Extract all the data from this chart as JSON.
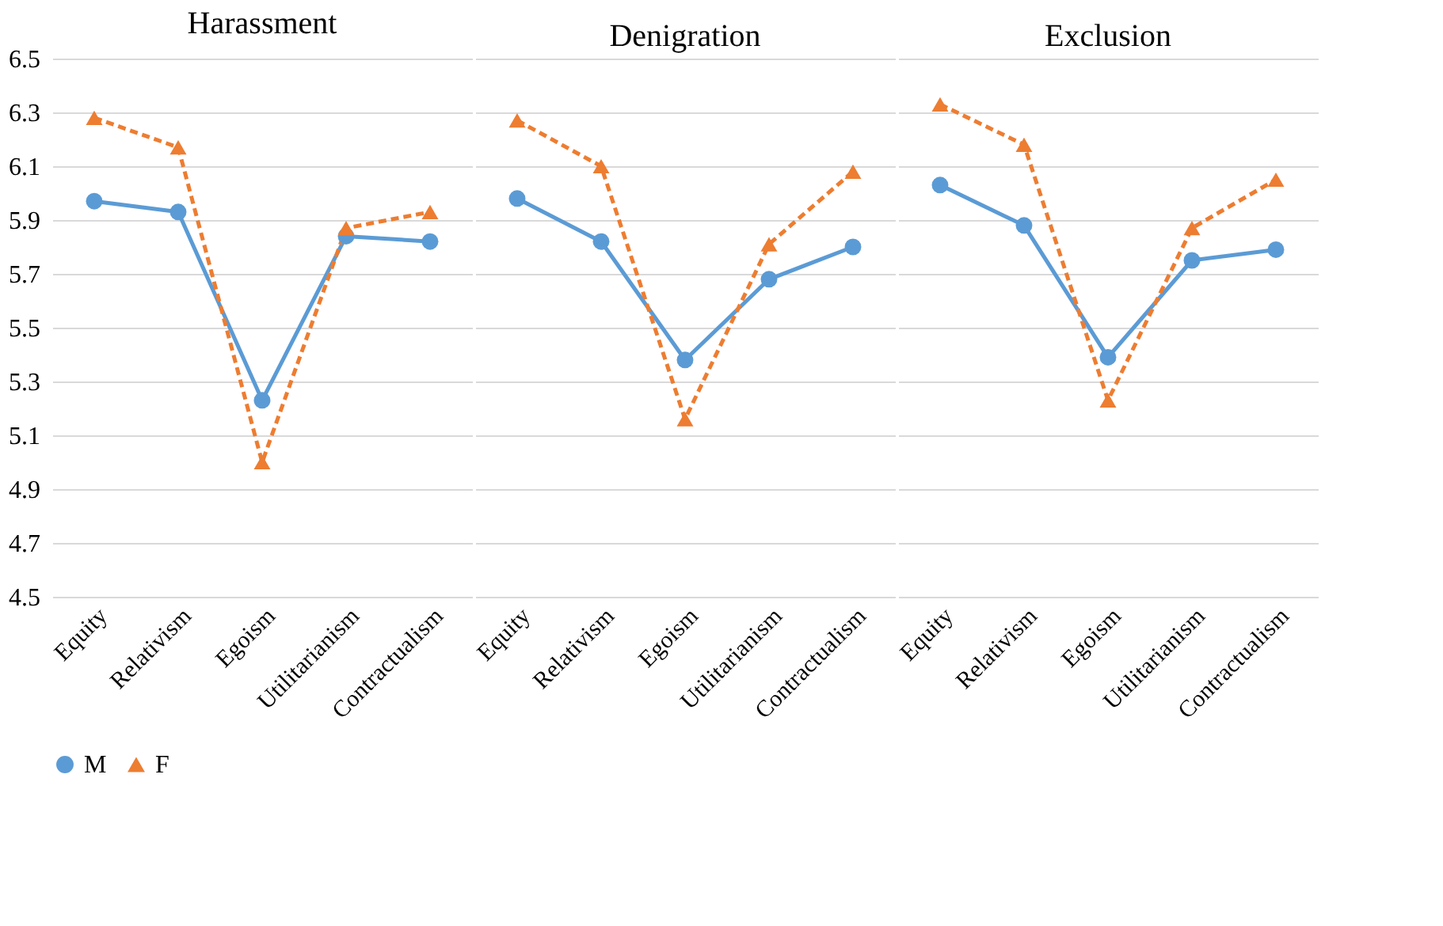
{
  "chart_data": [
    {
      "type": "line",
      "title": "Harassment",
      "categories": [
        "Equity",
        "Relativism",
        "Egoism",
        "Utilitarianism",
        "Contractualism"
      ],
      "ylim": [
        4.5,
        6.5
      ],
      "yticks": [
        4.5,
        4.7,
        4.9,
        5.1,
        5.3,
        5.5,
        5.7,
        5.9,
        6.1,
        6.3,
        6.5
      ],
      "grid": "y",
      "legend": "bottom",
      "series": [
        {
          "name": "M",
          "color": "#5b9bd5",
          "marker": "circle",
          "line_style": "solid",
          "values": [
            5.97,
            5.93,
            5.23,
            5.84,
            5.82
          ]
        },
        {
          "name": "F",
          "color": "#ed7d31",
          "marker": "triangle",
          "line_style": "dashed",
          "values": [
            6.28,
            6.17,
            5.0,
            5.87,
            5.93
          ]
        }
      ]
    },
    {
      "type": "line",
      "title": "Denigration",
      "categories": [
        "Equity",
        "Relativism",
        "Egoism",
        "Utilitarianism",
        "Contractualism"
      ],
      "ylim": [
        4.5,
        6.5
      ],
      "yticks": [
        4.5,
        4.7,
        4.9,
        5.1,
        5.3,
        5.5,
        5.7,
        5.9,
        6.1,
        6.3,
        6.5
      ],
      "grid": "y",
      "tick_labels": "x",
      "series": [
        {
          "name": "M",
          "color": "#5b9bd5",
          "marker": "circle",
          "line_style": "solid",
          "values": [
            5.98,
            5.82,
            5.38,
            5.68,
            5.8
          ]
        },
        {
          "name": "F",
          "color": "#ed7d31",
          "marker": "triangle",
          "line_style": "dashed",
          "values": [
            6.27,
            6.1,
            5.16,
            5.81,
            6.08
          ]
        }
      ]
    },
    {
      "type": "line",
      "title": "Exclusion",
      "categories": [
        "Equity",
        "Relativism",
        "Egoism",
        "Utilitarianism",
        "Contractualism"
      ],
      "ylim": [
        4.5,
        6.5
      ],
      "yticks": [
        4.5,
        4.7,
        4.9,
        5.1,
        5.3,
        5.5,
        5.7,
        5.9,
        6.1,
        6.3,
        6.5
      ],
      "grid": "y",
      "tick_labels": "x",
      "series": [
        {
          "name": "M",
          "color": "#5b9bd5",
          "marker": "circle",
          "line_style": "solid",
          "values": [
            6.03,
            5.88,
            5.39,
            5.75,
            5.79
          ]
        },
        {
          "name": "F",
          "color": "#ed7d31",
          "marker": "triangle",
          "line_style": "dashed",
          "values": [
            6.33,
            6.18,
            5.23,
            5.87,
            6.05
          ]
        }
      ]
    }
  ]
}
